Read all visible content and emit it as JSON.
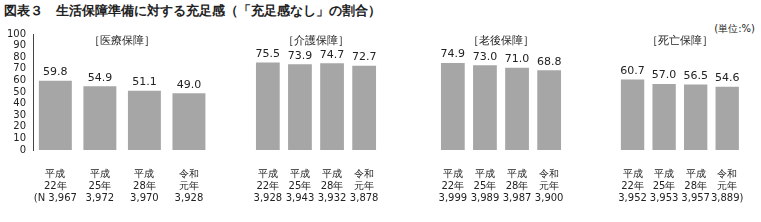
{
  "title": "図表３　生活保障準備に対する充足感（「充足感なし」の割合）",
  "unit": "(単位:%)",
  "chart_data": [
    {
      "type": "bar",
      "title": "［医療保障］",
      "categories": [
        "平成22年",
        "平成25年",
        "平成28年",
        "令和元年"
      ],
      "values": [
        59.8,
        54.9,
        51.1,
        49.0
      ],
      "value_labels": [
        "59.8",
        "54.9",
        "51.1",
        "49.0"
      ],
      "n_labels": [
        "(N 3,967",
        "3,972",
        "3,970",
        "3,928"
      ],
      "color": "#a6a6a6",
      "ylim": [
        0,
        100
      ],
      "yticks": [
        0,
        10,
        20,
        30,
        40,
        50,
        60,
        70,
        80,
        90,
        100
      ],
      "grid": false,
      "data_labels": true
    },
    {
      "type": "bar",
      "title": "［介護保障］",
      "categories": [
        "平成22年",
        "平成25年",
        "平成28年",
        "令和元年"
      ],
      "values": [
        75.5,
        73.9,
        74.7,
        72.7
      ],
      "value_labels": [
        "75.5",
        "73.9",
        "74.7",
        "72.7"
      ],
      "n_labels": [
        "3,928",
        "3,943",
        "3,932",
        "3,878"
      ],
      "color": "#a6a6a6",
      "ylim": [
        0,
        100
      ],
      "yticks": [
        0,
        10,
        20,
        30,
        40,
        50,
        60,
        70,
        80,
        90,
        100
      ],
      "grid": false,
      "data_labels": true,
      "tick_labels": "x"
    },
    {
      "type": "bar",
      "title": "［老後保障］",
      "categories": [
        "平成22年",
        "平成25年",
        "平成28年",
        "令和元年"
      ],
      "values": [
        74.9,
        73.0,
        71.0,
        68.8
      ],
      "value_labels": [
        "74.9",
        "73.0",
        "71.0",
        "68.8"
      ],
      "n_labels": [
        "3,999",
        "3,989",
        "3,987",
        "3,900"
      ],
      "color": "#a6a6a6",
      "ylim": [
        0,
        100
      ],
      "yticks": [
        0,
        10,
        20,
        30,
        40,
        50,
        60,
        70,
        80,
        90,
        100
      ],
      "grid": false,
      "data_labels": true,
      "tick_labels": "x"
    },
    {
      "type": "bar",
      "title": "［死亡保障］",
      "categories": [
        "平成22年",
        "平成25年",
        "平成28年",
        "令和元年"
      ],
      "values": [
        60.7,
        57.0,
        56.5,
        54.6
      ],
      "value_labels": [
        "60.7",
        "57.0",
        "56.5",
        "54.6"
      ],
      "n_labels": [
        "3,952",
        "3,953",
        "3,957",
        "3,889)"
      ],
      "color": "#a6a6a6",
      "ylim": [
        0,
        100
      ],
      "yticks": [
        0,
        10,
        20,
        30,
        40,
        50,
        60,
        70,
        80,
        90,
        100
      ],
      "grid": false,
      "data_labels": true,
      "tick_labels": "x"
    }
  ]
}
